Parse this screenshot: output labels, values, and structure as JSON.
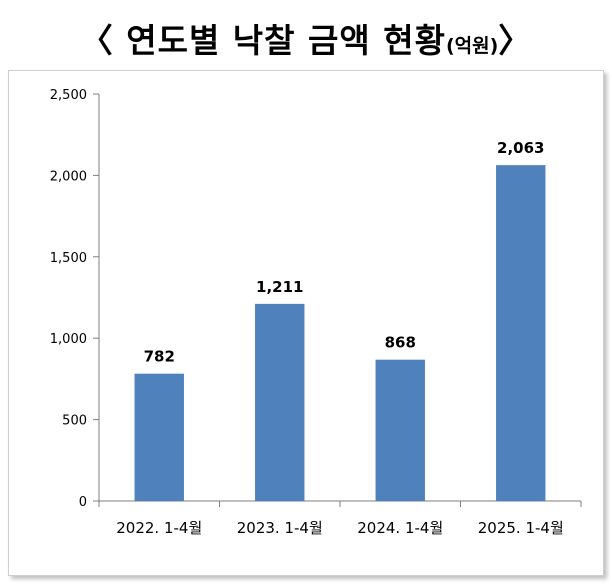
{
  "title": {
    "main": "〈 연도별 낙찰 금액 현황",
    "unit": "(억원)",
    "close": "〉"
  },
  "colors": {
    "bar": "#4f81bd",
    "axis": "#7f7f7f"
  },
  "chart_data": {
    "type": "bar",
    "categories": [
      "2022. 1-4월",
      "2023. 1-4월",
      "2024. 1-4월",
      "2025. 1-4월"
    ],
    "values": [
      782,
      1211,
      868,
      2063
    ],
    "data_labels": [
      "782",
      "1,211",
      "868",
      "2,063"
    ],
    "ylim": [
      0,
      2500
    ],
    "yticks": [
      0,
      500,
      1000,
      1500,
      2000,
      2500
    ],
    "ytick_labels": [
      "0",
      "500",
      "1,000",
      "1,500",
      "2,000",
      "2,500"
    ],
    "grid": false,
    "legend": "none",
    "xlabel": "",
    "ylabel": ""
  }
}
